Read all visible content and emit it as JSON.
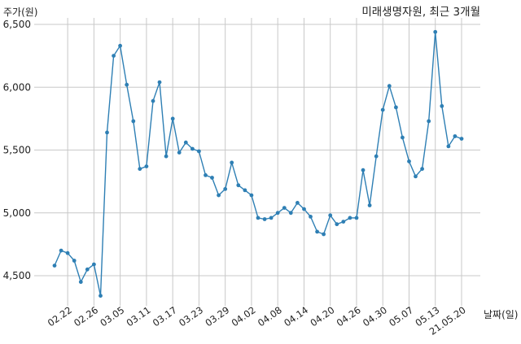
{
  "chart_data": {
    "type": "line",
    "title": "미래생명자원, 최근 3개월",
    "ylabel": "주가(원)",
    "xlabel": "날짜(일)",
    "ylim": [
      4250,
      6580
    ],
    "y_ticks": [
      4500,
      5000,
      5500,
      6000,
      6500
    ],
    "y_tick_labels": [
      "4,500",
      "5,000",
      "5,500",
      "6,000",
      "6,500"
    ],
    "grid": true,
    "line_color": "#2e7fb4",
    "x_tick_labels": [
      "02.22",
      "02.26",
      "03.05",
      "03.11",
      "03.17",
      "03.23",
      "03.29",
      "04.02",
      "04.08",
      "04.14",
      "04.20",
      "04.26",
      "04.30",
      "05.07",
      "05.13",
      "21.05.20"
    ],
    "x_tick_indices": [
      2,
      6,
      10,
      14,
      18,
      22,
      26,
      30,
      34,
      38,
      42,
      46,
      50,
      54,
      58,
      62
    ],
    "x_count": 63,
    "series": [
      {
        "values": [
          4580,
          4700,
          4680,
          4620,
          4450,
          4550,
          4590,
          4340,
          5640,
          6250,
          6330,
          6020,
          5730,
          5350,
          5370,
          5890,
          6040,
          5450,
          5750,
          5480,
          5560,
          5510,
          5490,
          5300,
          5280,
          5140,
          5190,
          5400,
          5220,
          5180,
          5140,
          4960,
          4950,
          4960,
          5000,
          5040,
          5000,
          5080,
          5030,
          4970,
          4850,
          4830,
          4980,
          4910,
          4930,
          4960,
          4960,
          5340,
          5060,
          5450,
          5820,
          6010,
          5840,
          5600,
          5410,
          5290,
          5350,
          5730,
          6440,
          5850,
          5530,
          5610,
          5590
        ]
      }
    ]
  }
}
